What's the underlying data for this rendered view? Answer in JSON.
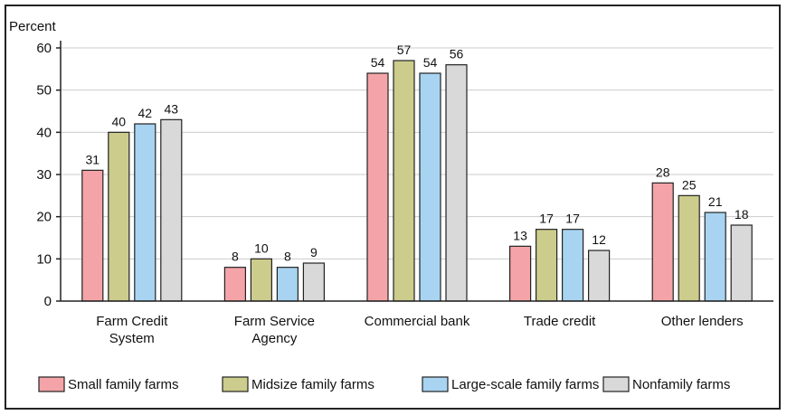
{
  "chart_data": {
    "type": "bar",
    "ylabel": "Percent",
    "ylim": [
      0,
      60
    ],
    "yticks": [
      0,
      10,
      20,
      30,
      40,
      50,
      60
    ],
    "grid": true,
    "legend_position": "bottom",
    "categories": [
      [
        "Farm Credit",
        "System"
      ],
      [
        "Farm Service",
        "Agency"
      ],
      [
        "Commercial bank"
      ],
      [
        "Trade credit"
      ],
      [
        "Other lenders"
      ]
    ],
    "series": [
      {
        "name": "Small family farms",
        "color": "#f4a4a8",
        "values": [
          31,
          8,
          54,
          13,
          28
        ]
      },
      {
        "name": "Midsize family farms",
        "color": "#cccc8c",
        "values": [
          40,
          10,
          57,
          17,
          25
        ]
      },
      {
        "name": "Large-scale family farms",
        "color": "#a8d4f2",
        "values": [
          42,
          8,
          54,
          17,
          21
        ]
      },
      {
        "name": "Nonfamily farms",
        "color": "#d9d9d9",
        "values": [
          43,
          9,
          56,
          12,
          18
        ]
      }
    ],
    "display_values": [
      [
        31,
        8,
        54,
        13,
        28
      ],
      [
        40,
        10,
        57,
        17,
        25
      ],
      [
        42,
        8,
        54,
        17,
        21
      ],
      [
        43,
        9,
        56,
        12,
        18
      ]
    ]
  }
}
